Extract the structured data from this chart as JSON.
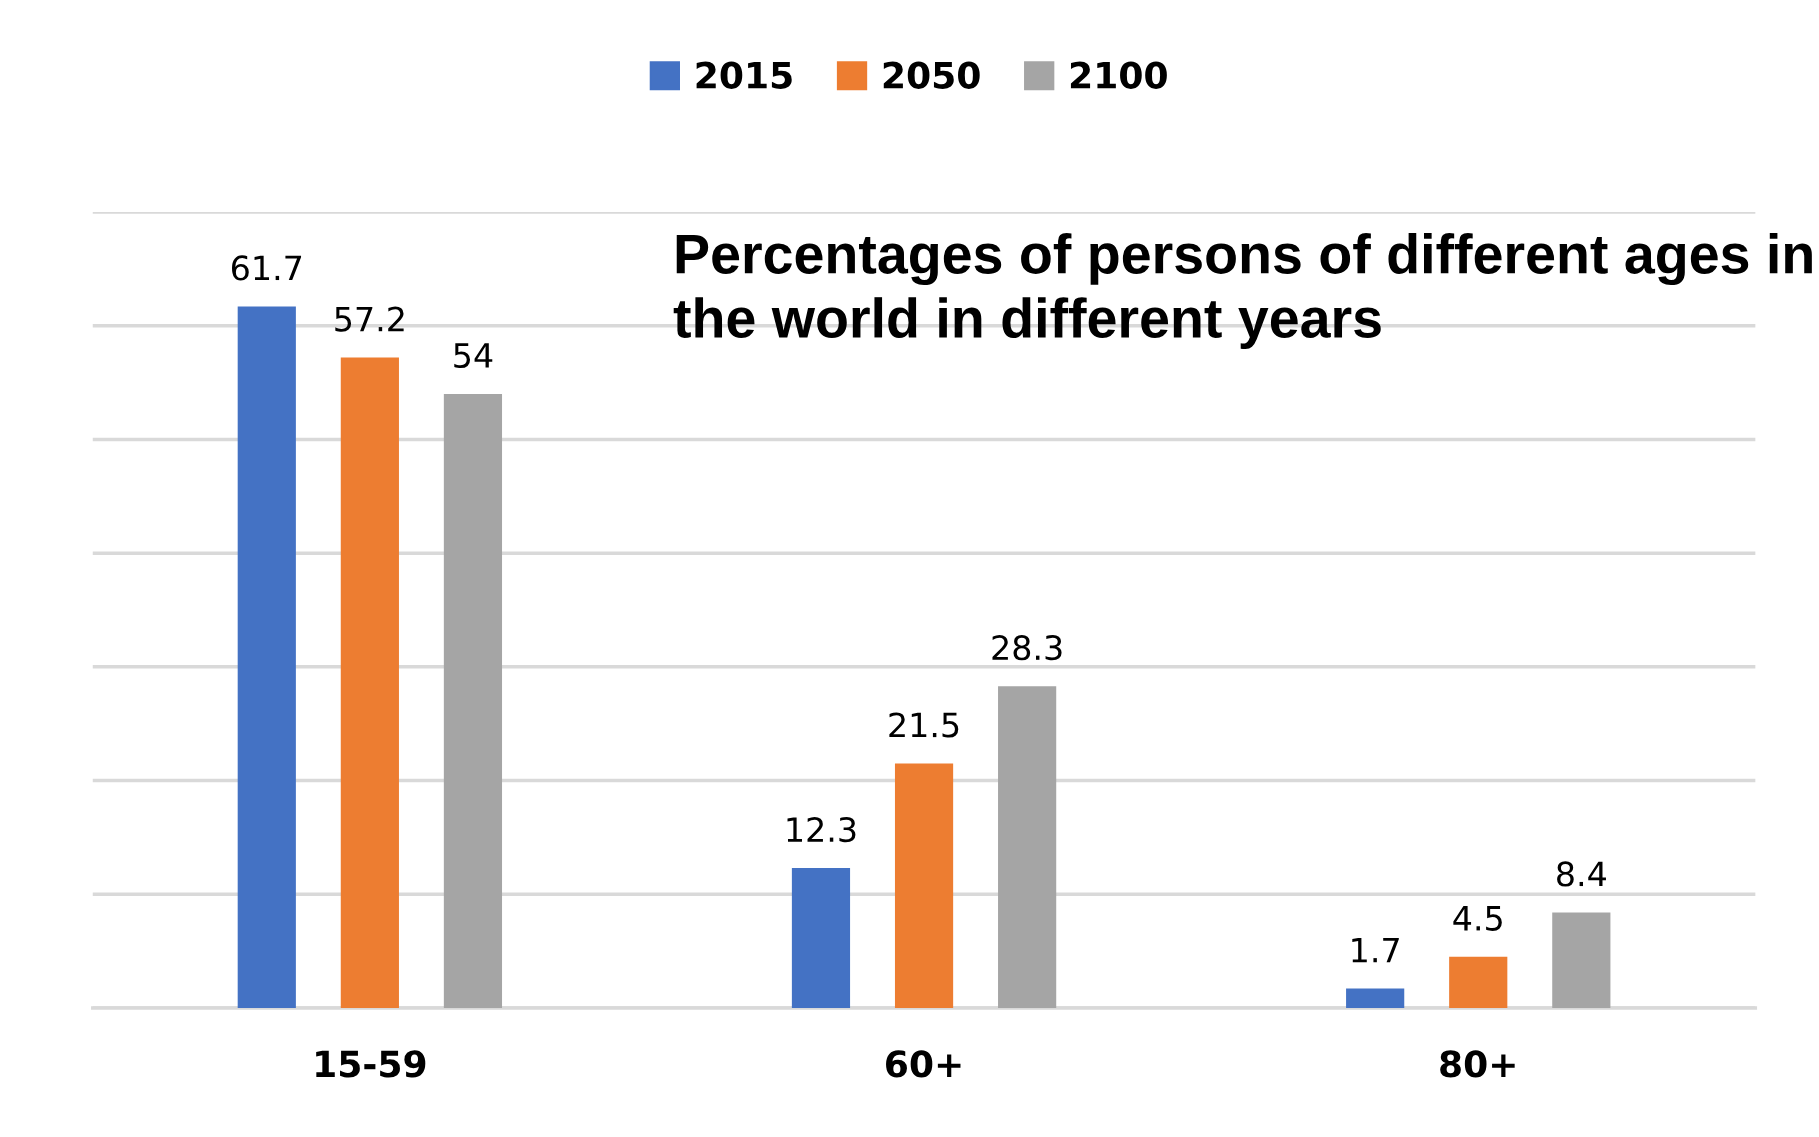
{
  "chart_data": {
    "type": "bar",
    "title": "Percentages of persons of different ages in the world in different years",
    "categories": [
      "15-59",
      "60+",
      "80+"
    ],
    "series": [
      {
        "name": "2015",
        "color": "#4472c4",
        "values": [
          61.7,
          12.3,
          1.7
        ]
      },
      {
        "name": "2050",
        "color": "#ed7d31",
        "values": [
          57.2,
          21.5,
          4.5
        ]
      },
      {
        "name": "2100",
        "color": "#a5a5a5",
        "values": [
          54,
          28.3,
          8.4
        ]
      }
    ],
    "ylim": [
      0,
      70
    ],
    "yticks": [
      {
        "value": 0,
        "label": null
      },
      {
        "value": 10,
        "label": null
      },
      {
        "value": 20,
        "label": null
      },
      {
        "value": 30,
        "label": null
      },
      {
        "value": 40,
        "label": null
      },
      {
        "value": 50,
        "label": null
      },
      {
        "value": 60,
        "label": null
      },
      {
        "value": 70,
        "label": null
      }
    ],
    "grid": "y",
    "legend": "top",
    "data_labels": true,
    "tick_labels": "x"
  }
}
